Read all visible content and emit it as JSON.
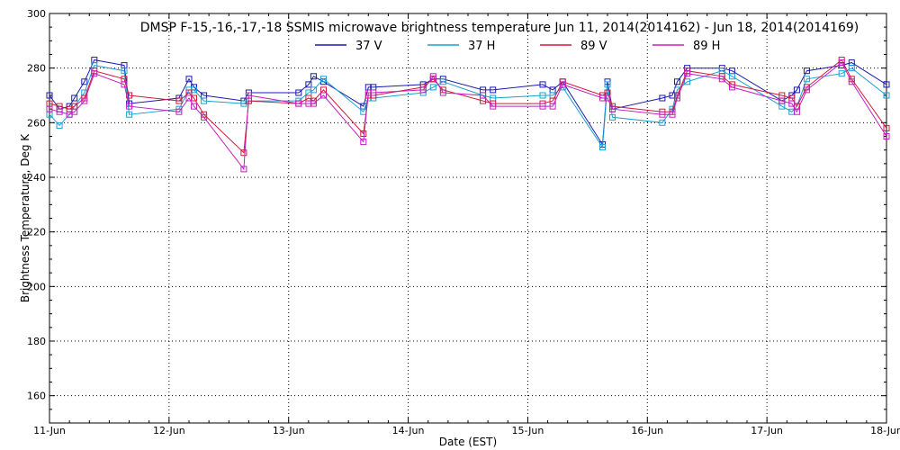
{
  "chart_data": {
    "type": "line",
    "title": "DMSP F-15,-16,-17,-18 SSMIS microwave brightness temperature Jun 11, 2014(2014162) - Jun 18, 2014(2014169)",
    "xlabel": "Date (EST)",
    "ylabel": "Brightness Temperature, Deg K",
    "xlim": [
      "2014-06-11 00:00",
      "2014-06-18 00:00"
    ],
    "ylim": [
      150,
      300
    ],
    "x_tick_labels": [
      "11-Jun",
      "12-Jun",
      "13-Jun",
      "14-Jun",
      "15-Jun",
      "16-Jun",
      "17-Jun",
      "18-Jun"
    ],
    "y_ticks": [
      160,
      180,
      200,
      220,
      240,
      260,
      280,
      300
    ],
    "grid": true,
    "legend_position": "top",
    "series": [
      {
        "name": "37 V",
        "color": "#1a1ab0",
        "x": [
          "2014-06-11 00:00",
          "2014-06-11 02:00",
          "2014-06-11 04:00",
          "2014-06-11 05:00",
          "2014-06-11 07:00",
          "2014-06-11 09:00",
          "2014-06-11 15:00",
          "2014-06-11 16:00",
          "2014-06-12 02:00",
          "2014-06-12 04:00",
          "2014-06-12 05:00",
          "2014-06-12 07:00",
          "2014-06-12 15:00",
          "2014-06-12 16:00",
          "2014-06-13 02:00",
          "2014-06-13 04:00",
          "2014-06-13 05:00",
          "2014-06-13 07:00",
          "2014-06-13 15:00",
          "2014-06-13 16:00",
          "2014-06-13 17:00",
          "2014-06-14 03:00",
          "2014-06-14 05:00",
          "2014-06-14 07:00",
          "2014-06-14 15:00",
          "2014-06-14 17:00",
          "2014-06-15 03:00",
          "2014-06-15 05:00",
          "2014-06-15 07:00",
          "2014-06-15 15:00",
          "2014-06-15 16:00",
          "2014-06-15 17:00",
          "2014-06-16 03:00",
          "2014-06-16 05:00",
          "2014-06-16 06:00",
          "2014-06-16 08:00",
          "2014-06-16 15:00",
          "2014-06-16 17:00",
          "2014-06-17 03:00",
          "2014-06-17 05:00",
          "2014-06-17 06:00",
          "2014-06-17 08:00",
          "2014-06-17 15:00",
          "2014-06-17 17:00",
          "2014-06-18 00:00"
        ],
        "values": [
          270,
          265,
          266,
          269,
          275,
          283,
          281,
          267,
          269,
          276,
          273,
          270,
          268,
          271,
          271,
          274,
          277,
          275,
          266,
          273,
          273,
          274,
          276,
          276,
          272,
          272,
          274,
          272,
          275,
          252,
          275,
          265,
          269,
          270,
          275,
          280,
          280,
          279,
          268,
          270,
          272,
          279,
          281,
          282,
          274
        ]
      },
      {
        "name": "37 H",
        "color": "#1aa0d0",
        "x": [
          "2014-06-11 00:00",
          "2014-06-11 02:00",
          "2014-06-11 04:00",
          "2014-06-11 05:00",
          "2014-06-11 07:00",
          "2014-06-11 09:00",
          "2014-06-11 15:00",
          "2014-06-11 16:00",
          "2014-06-12 02:00",
          "2014-06-12 04:00",
          "2014-06-12 05:00",
          "2014-06-12 07:00",
          "2014-06-12 15:00",
          "2014-06-12 16:00",
          "2014-06-13 02:00",
          "2014-06-13 04:00",
          "2014-06-13 05:00",
          "2014-06-13 07:00",
          "2014-06-13 15:00",
          "2014-06-13 16:00",
          "2014-06-13 17:00",
          "2014-06-14 03:00",
          "2014-06-14 05:00",
          "2014-06-14 07:00",
          "2014-06-14 15:00",
          "2014-06-14 17:00",
          "2014-06-15 03:00",
          "2014-06-15 05:00",
          "2014-06-15 07:00",
          "2014-06-15 15:00",
          "2014-06-15 16:00",
          "2014-06-15 17:00",
          "2014-06-16 03:00",
          "2014-06-16 05:00",
          "2014-06-16 06:00",
          "2014-06-16 08:00",
          "2014-06-16 15:00",
          "2014-06-16 17:00",
          "2014-06-17 03:00",
          "2014-06-17 05:00",
          "2014-06-17 06:00",
          "2014-06-17 08:00",
          "2014-06-17 15:00",
          "2014-06-17 17:00",
          "2014-06-18 00:00"
        ],
        "values": [
          263,
          259,
          263,
          266,
          271,
          281,
          279,
          263,
          265,
          272,
          272,
          268,
          267,
          268,
          268,
          271,
          272,
          276,
          264,
          269,
          269,
          271,
          273,
          275,
          270,
          269,
          270,
          270,
          273,
          251,
          274,
          262,
          260,
          265,
          272,
          275,
          279,
          277,
          266,
          264,
          266,
          276,
          278,
          280,
          270
        ]
      },
      {
        "name": "89 V",
        "color": "#d01a3a",
        "x": [
          "2014-06-11 00:00",
          "2014-06-11 02:00",
          "2014-06-11 04:00",
          "2014-06-11 05:00",
          "2014-06-11 07:00",
          "2014-06-11 09:00",
          "2014-06-11 15:00",
          "2014-06-11 16:00",
          "2014-06-12 02:00",
          "2014-06-12 04:00",
          "2014-06-12 05:00",
          "2014-06-12 07:00",
          "2014-06-12 15:00",
          "2014-06-12 16:00",
          "2014-06-13 02:00",
          "2014-06-13 04:00",
          "2014-06-13 05:00",
          "2014-06-13 07:00",
          "2014-06-13 15:00",
          "2014-06-13 16:00",
          "2014-06-13 17:00",
          "2014-06-14 03:00",
          "2014-06-14 05:00",
          "2014-06-14 07:00",
          "2014-06-14 15:00",
          "2014-06-14 17:00",
          "2014-06-15 03:00",
          "2014-06-15 05:00",
          "2014-06-15 07:00",
          "2014-06-15 15:00",
          "2014-06-15 16:00",
          "2014-06-15 17:00",
          "2014-06-16 03:00",
          "2014-06-16 05:00",
          "2014-06-16 06:00",
          "2014-06-16 08:00",
          "2014-06-16 15:00",
          "2014-06-16 17:00",
          "2014-06-17 03:00",
          "2014-06-17 05:00",
          "2014-06-17 06:00",
          "2014-06-17 08:00",
          "2014-06-17 15:00",
          "2014-06-17 17:00",
          "2014-06-18 00:00"
        ],
        "values": [
          267,
          266,
          265,
          266,
          269,
          279,
          276,
          270,
          268,
          271,
          269,
          263,
          249,
          268,
          267,
          269,
          268,
          272,
          256,
          270,
          270,
          273,
          276,
          272,
          268,
          267,
          267,
          268,
          275,
          270,
          271,
          266,
          264,
          264,
          270,
          279,
          277,
          274,
          270,
          269,
          266,
          273,
          283,
          276,
          258
        ]
      },
      {
        "name": "89 H",
        "color": "#c020c0",
        "x": [
          "2014-06-11 00:00",
          "2014-06-11 02:00",
          "2014-06-11 04:00",
          "2014-06-11 05:00",
          "2014-06-11 07:00",
          "2014-06-11 09:00",
          "2014-06-11 15:00",
          "2014-06-11 16:00",
          "2014-06-12 02:00",
          "2014-06-12 04:00",
          "2014-06-12 05:00",
          "2014-06-12 07:00",
          "2014-06-12 15:00",
          "2014-06-12 16:00",
          "2014-06-13 02:00",
          "2014-06-13 04:00",
          "2014-06-13 05:00",
          "2014-06-13 07:00",
          "2014-06-13 15:00",
          "2014-06-13 16:00",
          "2014-06-13 17:00",
          "2014-06-14 03:00",
          "2014-06-14 05:00",
          "2014-06-14 07:00",
          "2014-06-14 15:00",
          "2014-06-14 17:00",
          "2014-06-15 03:00",
          "2014-06-15 05:00",
          "2014-06-15 07:00",
          "2014-06-15 15:00",
          "2014-06-15 16:00",
          "2014-06-15 17:00",
          "2014-06-16 03:00",
          "2014-06-16 05:00",
          "2014-06-16 06:00",
          "2014-06-16 08:00",
          "2014-06-16 15:00",
          "2014-06-16 17:00",
          "2014-06-17 03:00",
          "2014-06-17 05:00",
          "2014-06-17 06:00",
          "2014-06-17 08:00",
          "2014-06-17 15:00",
          "2014-06-17 17:00",
          "2014-06-18 00:00"
        ],
        "values": [
          265,
          264,
          263,
          264,
          268,
          278,
          274,
          266,
          264,
          269,
          266,
          262,
          243,
          270,
          267,
          267,
          267,
          270,
          253,
          271,
          271,
          272,
          277,
          271,
          270,
          266,
          266,
          266,
          274,
          269,
          269,
          265,
          263,
          263,
          269,
          278,
          276,
          273,
          268,
          267,
          264,
          272,
          282,
          275,
          255
        ]
      }
    ]
  }
}
